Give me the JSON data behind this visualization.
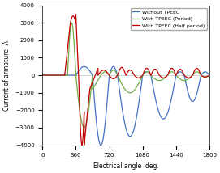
{
  "title": "",
  "xlabel": "Electrical angle  deg.",
  "ylabel": "Current of armature  A",
  "xlim": [
    0,
    1800
  ],
  "ylim": [
    -4000,
    4000
  ],
  "xticks": [
    0,
    360,
    720,
    1080,
    1440,
    1800
  ],
  "yticks": [
    -4000,
    -3000,
    -2000,
    -1000,
    0,
    1000,
    2000,
    3000,
    4000
  ],
  "legend": [
    "Without TPEEC",
    "With TPEEC (Period)",
    "With TPEEC (Half period)"
  ],
  "colors": {
    "blue": "#4472C4",
    "green": "#70AD47",
    "red": "#C00000"
  },
  "background": "#FFFFFF",
  "linewidth": 0.9
}
